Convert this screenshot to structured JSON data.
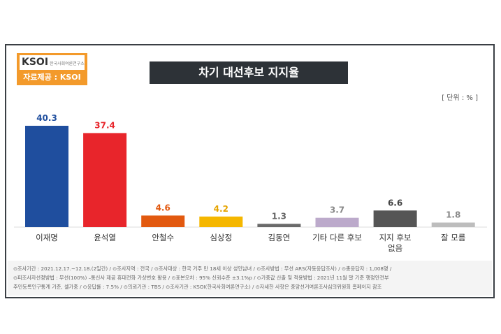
{
  "logo": {
    "brand": "KSOI",
    "subtitle": "한국사회여론연구소",
    "source": "자료제공 : KSOI"
  },
  "chart_data": {
    "type": "bar",
    "title": "차기 대선후보 지지율",
    "unit_label": "[ 단위 : % ]",
    "categories": [
      "이재명",
      "윤석열",
      "안철수",
      "심상정",
      "김동연",
      "기타 다른 후보",
      "지지 후보 없음",
      "잘 모름"
    ],
    "category_lines": [
      [
        "이재명"
      ],
      [
        "윤석열"
      ],
      [
        "안철수"
      ],
      [
        "심상정"
      ],
      [
        "김동연"
      ],
      [
        "기타 다른 후보"
      ],
      [
        "지지 후보",
        "없음"
      ],
      [
        "잘 모름"
      ]
    ],
    "values": [
      40.3,
      37.4,
      4.6,
      4.2,
      1.3,
      3.7,
      6.6,
      1.8
    ],
    "value_labels": [
      "40.3",
      "37.4",
      "4.6",
      "4.2",
      "1.3",
      "3.7",
      "6.6",
      "1.8"
    ],
    "colors": [
      "#1f4e9e",
      "#e8252b",
      "#e2590f",
      "#f5b700",
      "#6a6a6a",
      "#bcaacb",
      "#555555",
      "#bdbdbd"
    ],
    "label_colors": [
      "#1f4e9e",
      "#e8252b",
      "#e2590f",
      "#e6a400",
      "#666666",
      "#888888",
      "#444444",
      "#888888"
    ],
    "ylim": [
      0,
      42
    ]
  },
  "footer": {
    "lines": [
      "⊙조사기간 : 2021.12.17.~12.18.(2일간) / ⊙조사지역 : 전국 / ⊙조사대상 : 한국 거주 만 18세 이상 성인남녀 / ⊙조사방법 : 무선 ARS(자동응답조사) / ⊙총응답자 : 1,008명 /",
      "⊙피조사자선정방법 : 무선(100%) –통신사 제공 휴대전화 가상번호 활용 / ⊙표본오차 : 95% 신뢰수준 ±3.1%p / ⊙가중값 산출 및 적용방법 : 2021년 11월 말 기준 행정안전부",
      "주민등록인구통계 기준, 셀가중 / ⊙응답률 : 7.5% / ⊙의뢰기관 : TBS / ⊙조사기관 : KSOI(한국사회여론연구소) / ⊙자세한 사항은 중앙선거여론조사심의위원회 홈페이지 참조"
    ]
  }
}
